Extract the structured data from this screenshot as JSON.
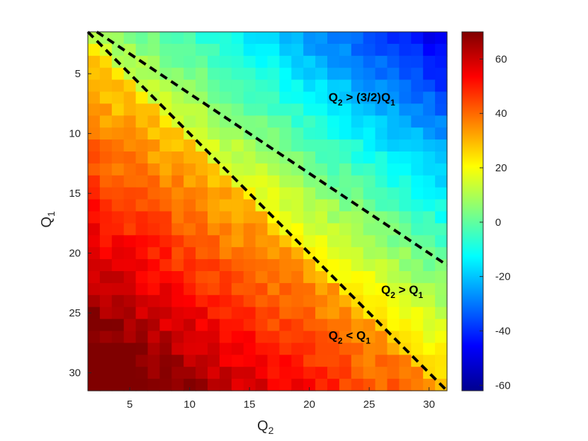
{
  "chart_data": {
    "type": "heatmap",
    "title": "",
    "x_axis": {
      "label": "Q",
      "label_sub": "2",
      "range": [
        1.5,
        31.5
      ],
      "ticks": [
        5,
        10,
        15,
        20,
        25,
        30
      ]
    },
    "y_axis": {
      "label": "Q",
      "label_sub": "1",
      "range": [
        1.5,
        31.5
      ],
      "reversed": true,
      "ticks": [
        5,
        10,
        15,
        20,
        25,
        30
      ]
    },
    "grid_size": 30,
    "cell_start": 2,
    "colorbar": {
      "min": -62,
      "max": 70,
      "colormap": "jet",
      "ticks": [
        60,
        40,
        20,
        0,
        -20,
        -40,
        -60
      ]
    },
    "value_model": {
      "description": "estimated",
      "lower_region": "Q2 < Q1",
      "upper_region": "Q2 > Q1"
    },
    "boundary_lines": [
      {
        "name": "Q2 = Q1",
        "slope": 1.0,
        "style": "dashed"
      },
      {
        "name": "Q2 = (3/2)Q1",
        "slope": 1.5,
        "style": "dashed"
      }
    ],
    "annotations": [
      {
        "id": "ann-1",
        "main": "Q",
        "sub1": "2",
        "rel": " > (3/2)Q",
        "sub2": "1",
        "x": 21.6,
        "y": 7.3
      },
      {
        "id": "ann-2",
        "main": "Q",
        "sub1": "2",
        "rel": " > Q",
        "sub2": "1",
        "x": 26.0,
        "y": 23.4
      },
      {
        "id": "ann-3",
        "main": "Q",
        "sub1": "2",
        "rel": " < Q",
        "sub2": "1",
        "x": 21.6,
        "y": 27.2
      }
    ]
  }
}
